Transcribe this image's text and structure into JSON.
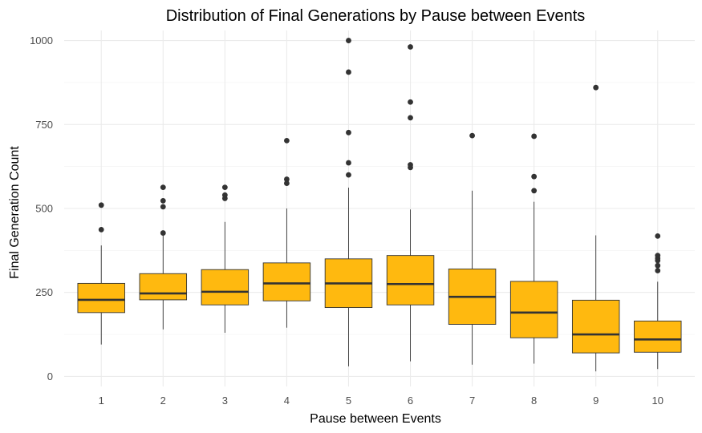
{
  "chart_data": {
    "type": "boxplot",
    "title": "Distribution of Final Generations by Pause between Events",
    "xlabel": "Pause between Events",
    "ylabel": "Final Generation Count",
    "categories": [
      "1",
      "2",
      "3",
      "4",
      "5",
      "6",
      "7",
      "8",
      "9",
      "10"
    ],
    "ylim": [
      -30,
      1030
    ],
    "yticks": [
      0,
      250,
      500,
      750,
      1000
    ],
    "yticklabels": [
      "0",
      "250",
      "500",
      "750",
      "1000"
    ],
    "grid": true,
    "legend": "none",
    "colors": {
      "fill": "#FFB90F",
      "stroke": "#333333",
      "outlier": "#333333",
      "grid": "#EBEBEB"
    },
    "boxes": [
      {
        "category": "1",
        "whisker_low": 95,
        "q1": 190,
        "median": 228,
        "q3": 277,
        "whisker_high": 390,
        "outliers": [
          437,
          510
        ]
      },
      {
        "category": "2",
        "whisker_low": 140,
        "q1": 228,
        "median": 247,
        "q3": 306,
        "whisker_high": 420,
        "outliers": [
          427,
          505,
          523,
          563
        ]
      },
      {
        "category": "3",
        "whisker_low": 130,
        "q1": 213,
        "median": 252,
        "q3": 318,
        "whisker_high": 460,
        "outliers": [
          530,
          540,
          563
        ]
      },
      {
        "category": "4",
        "whisker_low": 145,
        "q1": 225,
        "median": 277,
        "q3": 338,
        "whisker_high": 500,
        "outliers": [
          575,
          587,
          702
        ]
      },
      {
        "category": "5",
        "whisker_low": 30,
        "q1": 205,
        "median": 277,
        "q3": 350,
        "whisker_high": 562,
        "outliers": [
          600,
          636,
          726,
          906,
          1000
        ]
      },
      {
        "category": "6",
        "whisker_low": 45,
        "q1": 213,
        "median": 275,
        "q3": 360,
        "whisker_high": 497,
        "outliers": [
          622,
          630,
          770,
          817,
          981
        ]
      },
      {
        "category": "7",
        "whisker_low": 35,
        "q1": 155,
        "median": 237,
        "q3": 320,
        "whisker_high": 553,
        "outliers": [
          717
        ]
      },
      {
        "category": "8",
        "whisker_low": 38,
        "q1": 115,
        "median": 190,
        "q3": 283,
        "whisker_high": 520,
        "outliers": [
          553,
          595,
          715
        ]
      },
      {
        "category": "9",
        "whisker_low": 15,
        "q1": 70,
        "median": 125,
        "q3": 227,
        "whisker_high": 420,
        "outliers": [
          860
        ]
      },
      {
        "category": "10",
        "whisker_low": 22,
        "q1": 72,
        "median": 110,
        "q3": 165,
        "whisker_high": 282,
        "outliers": [
          315,
          330,
          345,
          352,
          360,
          418
        ]
      }
    ]
  }
}
